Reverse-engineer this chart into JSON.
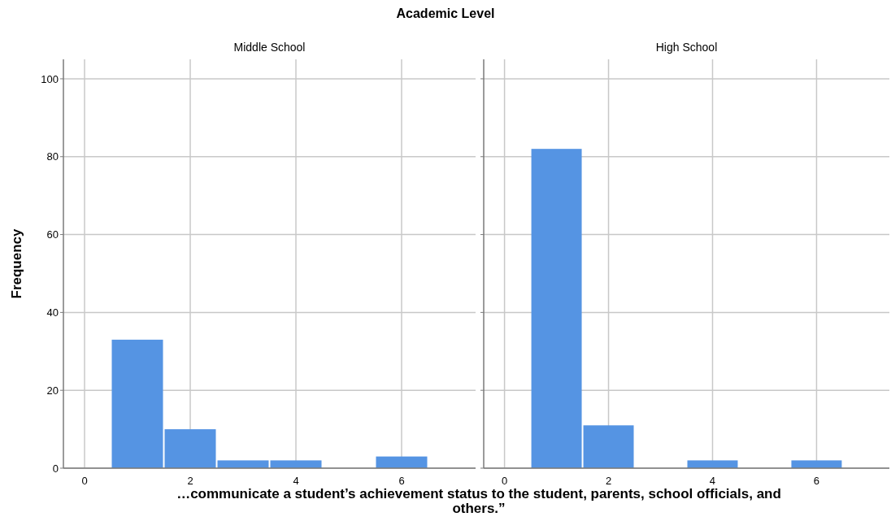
{
  "chart_data": [
    {
      "type": "histogram",
      "title": "Academic Level",
      "subtitle": "Middle School",
      "xlabel": "…communicate a student’s achievement status to the student, parents, school officials, and others.”",
      "ylabel": "Frequency",
      "bins": [
        0.5,
        1.5,
        2.5,
        3.5,
        4.5,
        5.5,
        6.5
      ],
      "values": [
        33,
        10,
        2,
        2,
        0,
        3
      ],
      "color": "#5594e3",
      "xlim": [
        -0.4,
        7.4
      ],
      "xticks": [
        0,
        2,
        4,
        6
      ],
      "ylim": [
        0,
        105
      ],
      "yticks": [
        0,
        20,
        40,
        60,
        80,
        100
      ],
      "grid": true
    },
    {
      "type": "histogram",
      "subtitle": "High School",
      "bins": [
        0.5,
        1.5,
        2.5,
        3.5,
        4.5,
        5.5,
        6.5
      ],
      "values": [
        82,
        11,
        0,
        2,
        0,
        2
      ],
      "color": "#5594e3",
      "xlim": [
        -0.4,
        7.4
      ],
      "xticks": [
        0,
        2,
        4,
        6
      ],
      "ylim": [
        0,
        105
      ],
      "yticks": [
        0,
        20,
        40,
        60,
        80,
        100
      ],
      "grid": true,
      "tick_labels": "x"
    }
  ]
}
